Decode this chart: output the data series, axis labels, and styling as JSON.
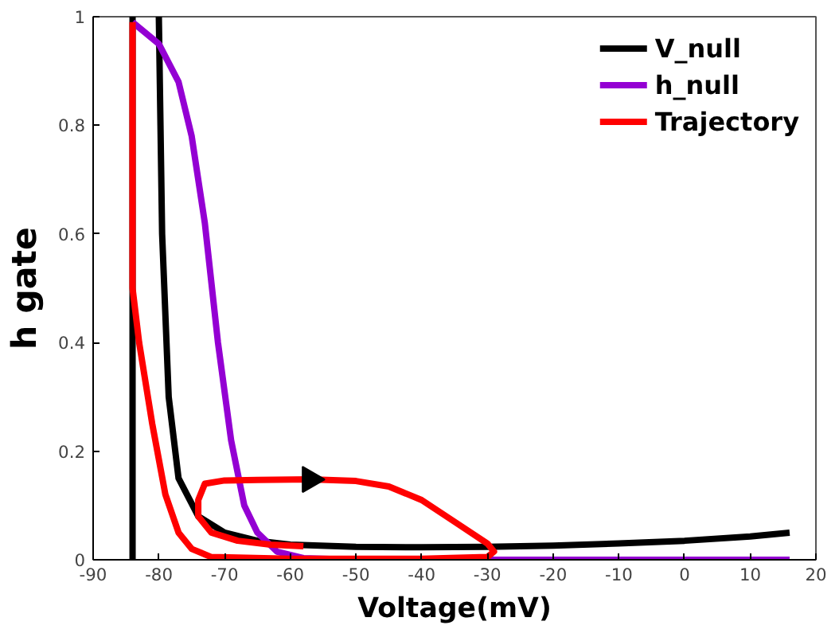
{
  "chart_data": {
    "type": "line",
    "xlabel": "Voltage(mV)",
    "ylabel": "h gate",
    "xlim": [
      -90,
      20
    ],
    "xticks": [
      -90,
      -80,
      -70,
      -60,
      -50,
      -40,
      -30,
      -20,
      -10,
      0,
      10,
      20
    ],
    "ylim": [
      0,
      1
    ],
    "yticks": [
      0,
      0.2,
      0.4,
      0.6,
      0.8,
      1
    ],
    "grid": false,
    "legend": "top right",
    "marker": "none",
    "line_style": "solid",
    "series": [
      {
        "name": "V_null",
        "color": "#000000",
        "x": [
          -84,
          -84,
          null,
          -80,
          -79.5,
          -78.5,
          -77,
          -74,
          -70,
          -65,
          -60,
          -50,
          -40,
          -30,
          -20,
          -10,
          0,
          10,
          16
        ],
        "values": [
          0,
          1,
          null,
          1,
          0.6,
          0.3,
          0.15,
          0.08,
          0.05,
          0.035,
          0.028,
          0.024,
          0.023,
          0.024,
          0.026,
          0.03,
          0.035,
          0.043,
          0.05
        ]
      },
      {
        "name": "h_null",
        "color": "#9400d3",
        "x": [
          -84,
          -80,
          -77,
          -75,
          -73,
          -71,
          -69,
          -67,
          -65,
          -62,
          -58,
          -50,
          16
        ],
        "values": [
          0.99,
          0.95,
          0.88,
          0.78,
          0.62,
          0.4,
          0.22,
          0.1,
          0.05,
          0.015,
          0.003,
          0,
          0
        ]
      },
      {
        "name": "Trajectory",
        "color": "#ff0000",
        "x": [
          -58,
          -63,
          -68,
          -72,
          -74,
          -74,
          -73,
          -70,
          -65,
          -57,
          -50,
          -45,
          -40,
          -35,
          -30,
          -29,
          -30,
          -40,
          -60,
          -72,
          -75,
          -77,
          -79,
          -81,
          -83,
          -84,
          -84
        ],
        "values": [
          0.025,
          0.028,
          0.035,
          0.05,
          0.08,
          0.11,
          0.14,
          0.146,
          0.147,
          0.148,
          0.145,
          0.135,
          0.11,
          0.07,
          0.03,
          0.015,
          0.005,
          0.002,
          0.002,
          0.005,
          0.02,
          0.05,
          0.12,
          0.25,
          0.4,
          0.5,
          0.99
        ]
      }
    ]
  }
}
